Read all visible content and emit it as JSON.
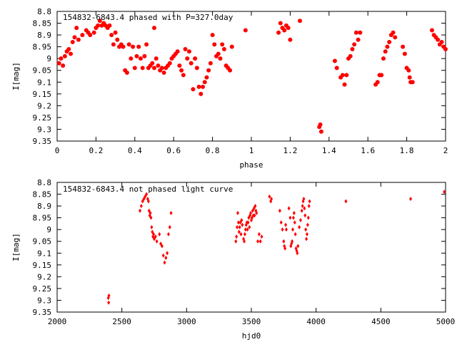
{
  "colors": {
    "series": "#ff0000",
    "axis": "#000000",
    "background": "#ffffff"
  },
  "chart_data": [
    {
      "type": "scatter",
      "title": "154832-6843.4 phased with P=327.0day",
      "xlabel": "phase",
      "ylabel": "I[mag]",
      "xlim": [
        0,
        2
      ],
      "ylim": [
        8.8,
        9.35
      ],
      "y_inverted": true,
      "xticks": [
        "0",
        "0.2",
        "0.4",
        "0.6",
        "0.8",
        "1",
        "1.2",
        "1.4",
        "1.6",
        "1.8",
        "2"
      ],
      "yticks": [
        "8.8",
        "8.85",
        "8.9",
        "8.95",
        "9",
        "9.05",
        "9.1",
        "9.15",
        "9.2",
        "9.25",
        "9.3",
        "9.35"
      ],
      "grid": false,
      "legend": "none",
      "marker": "filled-circle",
      "points": [
        [
          0.01,
          9.02
        ],
        [
          0.02,
          9.0
        ],
        [
          0.03,
          9.03
        ],
        [
          0.04,
          8.99
        ],
        [
          0.05,
          8.97
        ],
        [
          0.06,
          8.96
        ],
        [
          0.07,
          8.98
        ],
        [
          0.08,
          8.93
        ],
        [
          0.09,
          8.91
        ],
        [
          0.1,
          8.87
        ],
        [
          0.11,
          8.92
        ],
        [
          0.13,
          8.9
        ],
        [
          0.15,
          8.88
        ],
        [
          0.16,
          8.89
        ],
        [
          0.17,
          8.9
        ],
        [
          0.19,
          8.89
        ],
        [
          0.2,
          8.87
        ],
        [
          0.21,
          8.86
        ],
        [
          0.22,
          8.84
        ],
        [
          0.23,
          8.86
        ],
        [
          0.24,
          8.85
        ],
        [
          0.25,
          8.86
        ],
        [
          0.26,
          8.87
        ],
        [
          0.27,
          8.86
        ],
        [
          0.28,
          8.9
        ],
        [
          0.29,
          8.94
        ],
        [
          0.3,
          8.89
        ],
        [
          0.31,
          8.92
        ],
        [
          0.32,
          8.95
        ],
        [
          0.33,
          8.94
        ],
        [
          0.34,
          8.95
        ],
        [
          0.35,
          9.05
        ],
        [
          0.36,
          9.06
        ],
        [
          0.37,
          8.94
        ],
        [
          0.38,
          9.0
        ],
        [
          0.39,
          8.95
        ],
        [
          0.4,
          9.04
        ],
        [
          0.41,
          8.99
        ],
        [
          0.42,
          8.95
        ],
        [
          0.43,
          9.0
        ],
        [
          0.44,
          9.04
        ],
        [
          0.45,
          8.99
        ],
        [
          0.46,
          8.94
        ],
        [
          0.47,
          9.04
        ],
        [
          0.48,
          9.03
        ],
        [
          0.49,
          9.02
        ],
        [
          0.5,
          8.87
        ],
        [
          0.5,
          9.04
        ],
        [
          0.51,
          9.0
        ],
        [
          0.52,
          9.03
        ],
        [
          0.53,
          9.05
        ],
        [
          0.54,
          9.04
        ],
        [
          0.55,
          9.06
        ],
        [
          0.56,
          9.04
        ],
        [
          0.57,
          9.03
        ],
        [
          0.58,
          9.02
        ],
        [
          0.59,
          9.0
        ],
        [
          0.6,
          8.99
        ],
        [
          0.61,
          8.98
        ],
        [
          0.62,
          8.97
        ],
        [
          0.63,
          9.03
        ],
        [
          0.64,
          9.05
        ],
        [
          0.65,
          9.07
        ],
        [
          0.66,
          8.96
        ],
        [
          0.67,
          9.0
        ],
        [
          0.68,
          8.97
        ],
        [
          0.69,
          9.02
        ],
        [
          0.7,
          9.13
        ],
        [
          0.71,
          9.0
        ],
        [
          0.72,
          9.04
        ],
        [
          0.73,
          9.12
        ],
        [
          0.74,
          9.15
        ],
        [
          0.75,
          9.12
        ],
        [
          0.76,
          9.1
        ],
        [
          0.77,
          9.08
        ],
        [
          0.78,
          9.05
        ],
        [
          0.79,
          9.02
        ],
        [
          0.8,
          8.9
        ],
        [
          0.81,
          8.94
        ],
        [
          0.82,
          8.99
        ],
        [
          0.83,
          8.98
        ],
        [
          0.84,
          9.0
        ],
        [
          0.85,
          8.94
        ],
        [
          0.86,
          8.96
        ],
        [
          0.87,
          9.03
        ],
        [
          0.88,
          9.04
        ],
        [
          0.89,
          9.05
        ],
        [
          0.9,
          8.95
        ],
        [
          0.97,
          8.88
        ],
        [
          1.14,
          8.89
        ],
        [
          1.15,
          8.85
        ],
        [
          1.16,
          8.87
        ],
        [
          1.17,
          8.88
        ],
        [
          1.18,
          8.86
        ],
        [
          1.19,
          8.87
        ],
        [
          1.2,
          8.92
        ],
        [
          1.25,
          8.84
        ],
        [
          1.35,
          9.29
        ],
        [
          1.355,
          9.28
        ],
        [
          1.36,
          9.31
        ],
        [
          1.43,
          9.01
        ],
        [
          1.44,
          9.04
        ],
        [
          1.46,
          9.08
        ],
        [
          1.47,
          9.07
        ],
        [
          1.48,
          9.11
        ],
        [
          1.49,
          9.07
        ],
        [
          1.5,
          9.0
        ],
        [
          1.51,
          8.99
        ],
        [
          1.52,
          8.96
        ],
        [
          1.53,
          8.94
        ],
        [
          1.54,
          8.89
        ],
        [
          1.55,
          8.92
        ],
        [
          1.56,
          8.89
        ],
        [
          1.64,
          9.11
        ],
        [
          1.65,
          9.1
        ],
        [
          1.66,
          9.07
        ],
        [
          1.67,
          9.07
        ],
        [
          1.68,
          9.0
        ],
        [
          1.69,
          8.97
        ],
        [
          1.7,
          8.95
        ],
        [
          1.71,
          8.93
        ],
        [
          1.72,
          8.9
        ],
        [
          1.73,
          8.89
        ],
        [
          1.74,
          8.91
        ],
        [
          1.78,
          8.95
        ],
        [
          1.79,
          8.98
        ],
        [
          1.8,
          9.04
        ],
        [
          1.81,
          9.05
        ],
        [
          1.815,
          9.08
        ],
        [
          1.82,
          9.1
        ],
        [
          1.83,
          9.1
        ],
        [
          1.93,
          8.88
        ],
        [
          1.94,
          8.9
        ],
        [
          1.95,
          8.91
        ],
        [
          1.96,
          8.92
        ],
        [
          1.97,
          8.94
        ],
        [
          1.98,
          8.93
        ],
        [
          1.99,
          8.95
        ],
        [
          2.0,
          8.96
        ]
      ]
    },
    {
      "type": "scatter",
      "title": "154832-6843.4 not phased light curve",
      "xlabel": "hjd0",
      "ylabel": "I[mag]",
      "xlim": [
        2000,
        5000
      ],
      "ylim": [
        8.8,
        9.35
      ],
      "y_inverted": true,
      "xticks": [
        "2000",
        "2500",
        "3000",
        "3500",
        "4000",
        "4500",
        "5000"
      ],
      "yticks": [
        "8.8",
        "8.85",
        "8.9",
        "8.95",
        "9",
        "9.05",
        "9.1",
        "9.15",
        "9.2",
        "9.25",
        "9.3",
        "9.35"
      ],
      "grid": false,
      "legend": "none",
      "marker": "small-diamond",
      "points": [
        [
          2395,
          9.29
        ],
        [
          2398,
          9.31
        ],
        [
          2400,
          9.28
        ],
        [
          2640,
          8.92
        ],
        [
          2650,
          8.9
        ],
        [
          2660,
          8.88
        ],
        [
          2670,
          8.87
        ],
        [
          2680,
          8.86
        ],
        [
          2690,
          8.85
        ],
        [
          2700,
          8.87
        ],
        [
          2705,
          8.88
        ],
        [
          2710,
          8.92
        ],
        [
          2715,
          8.94
        ],
        [
          2720,
          8.93
        ],
        [
          2725,
          8.95
        ],
        [
          2730,
          8.99
        ],
        [
          2735,
          9.01
        ],
        [
          2740,
          9.03
        ],
        [
          2745,
          9.02
        ],
        [
          2750,
          9.04
        ],
        [
          2760,
          9.03
        ],
        [
          2770,
          9.05
        ],
        [
          2790,
          9.02
        ],
        [
          2800,
          9.06
        ],
        [
          2810,
          9.07
        ],
        [
          2820,
          9.11
        ],
        [
          2830,
          9.14
        ],
        [
          2840,
          9.12
        ],
        [
          2850,
          9.1
        ],
        [
          2860,
          9.02
        ],
        [
          2870,
          8.99
        ],
        [
          2880,
          8.93
        ],
        [
          3380,
          9.05
        ],
        [
          3385,
          9.03
        ],
        [
          3390,
          8.99
        ],
        [
          3395,
          8.93
        ],
        [
          3400,
          8.97
        ],
        [
          3405,
          9.01
        ],
        [
          3410,
          8.99
        ],
        [
          3415,
          8.97
        ],
        [
          3420,
          9.02
        ],
        [
          3425,
          8.96
        ],
        [
          3430,
          8.98
        ],
        [
          3440,
          9.04
        ],
        [
          3445,
          9.05
        ],
        [
          3450,
          9.02
        ],
        [
          3455,
          9.0
        ],
        [
          3460,
          8.98
        ],
        [
          3465,
          8.97
        ],
        [
          3470,
          9.0
        ],
        [
          3475,
          8.97
        ],
        [
          3480,
          8.95
        ],
        [
          3485,
          8.99
        ],
        [
          3490,
          8.94
        ],
        [
          3495,
          8.93
        ],
        [
          3500,
          8.96
        ],
        [
          3505,
          8.95
        ],
        [
          3510,
          8.92
        ],
        [
          3515,
          8.94
        ],
        [
          3520,
          8.91
        ],
        [
          3525,
          8.94
        ],
        [
          3530,
          8.9
        ],
        [
          3535,
          8.92
        ],
        [
          3540,
          8.93
        ],
        [
          3550,
          9.05
        ],
        [
          3560,
          9.02
        ],
        [
          3570,
          9.05
        ],
        [
          3580,
          9.03
        ],
        [
          3640,
          8.86
        ],
        [
          3650,
          8.88
        ],
        [
          3655,
          8.87
        ],
        [
          3720,
          8.92
        ],
        [
          3730,
          8.97
        ],
        [
          3740,
          9.0
        ],
        [
          3750,
          9.05
        ],
        [
          3755,
          9.07
        ],
        [
          3760,
          9.08
        ],
        [
          3765,
          8.98
        ],
        [
          3770,
          9.0
        ],
        [
          3790,
          8.91
        ],
        [
          3800,
          8.95
        ],
        [
          3805,
          9.07
        ],
        [
          3810,
          9.06
        ],
        [
          3815,
          9.05
        ],
        [
          3820,
          9.0
        ],
        [
          3825,
          8.95
        ],
        [
          3830,
          8.93
        ],
        [
          3835,
          8.97
        ],
        [
          3840,
          9.02
        ],
        [
          3845,
          9.08
        ],
        [
          3850,
          9.09
        ],
        [
          3855,
          9.1
        ],
        [
          3860,
          9.07
        ],
        [
          3870,
          8.99
        ],
        [
          3880,
          8.96
        ],
        [
          3890,
          8.92
        ],
        [
          3895,
          8.9
        ],
        [
          3900,
          8.88
        ],
        [
          3905,
          8.87
        ],
        [
          3910,
          8.91
        ],
        [
          3915,
          8.94
        ],
        [
          3920,
          9.0
        ],
        [
          3925,
          9.04
        ],
        [
          3930,
          9.02
        ],
        [
          3935,
          8.98
        ],
        [
          3940,
          8.95
        ],
        [
          3945,
          8.9
        ],
        [
          3950,
          8.88
        ],
        [
          4230,
          8.88
        ],
        [
          4730,
          8.87
        ],
        [
          4990,
          8.84
        ]
      ]
    }
  ]
}
